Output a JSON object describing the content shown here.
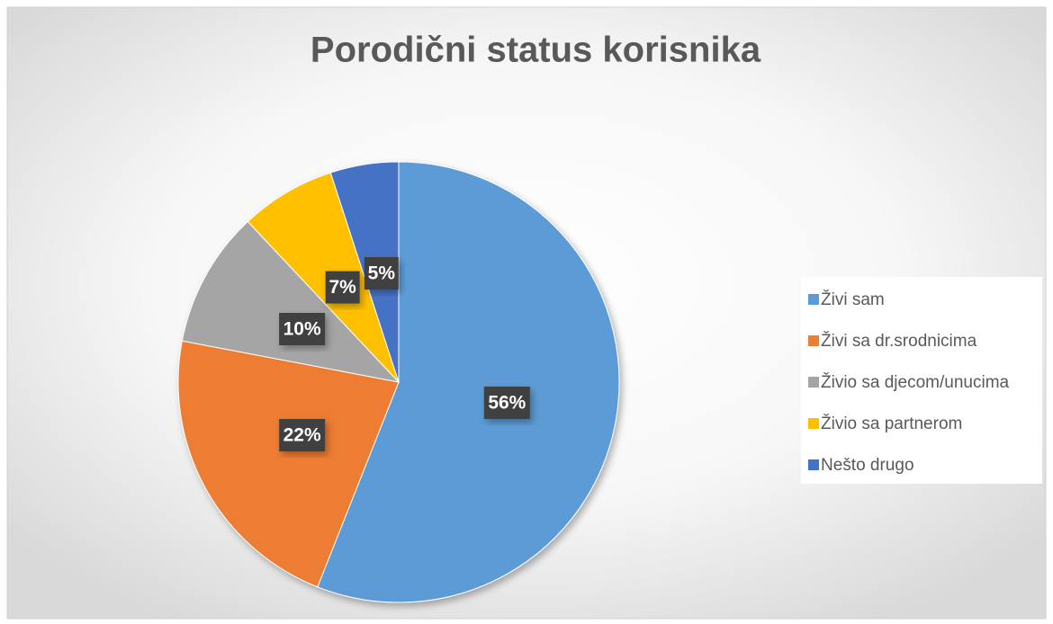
{
  "chart_data": {
    "type": "pie",
    "title": "Porodični status korisnika",
    "categories": [
      "Živi sam",
      "Živi sa dr.srodnicima",
      "Živio sa djecom/unucima",
      "Živio sa partnerom",
      "Nešto drugo"
    ],
    "values": [
      56,
      22,
      10,
      7,
      5
    ],
    "value_labels": [
      "56%",
      "22%",
      "10%",
      "7%",
      "5%"
    ],
    "colors": [
      "#5b9bd5",
      "#ed7d31",
      "#a5a5a5",
      "#ffc000",
      "#4472c4"
    ],
    "legend": "right"
  }
}
